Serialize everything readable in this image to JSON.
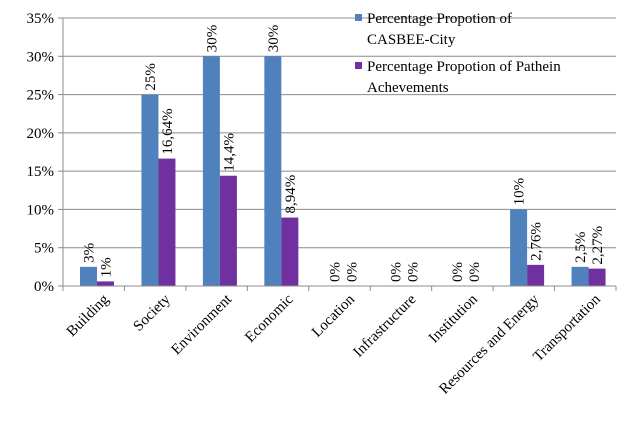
{
  "chart_data": {
    "type": "bar",
    "categories": [
      "Building",
      "Society",
      "Environment",
      "Economic",
      "Location",
      "Infrastructure",
      "Institution",
      "Resources and Energy",
      "Transportation"
    ],
    "series": [
      {
        "name": "Percentage Propotion of CASBEE-City",
        "color": "#4F81BD",
        "values": [
          2.5,
          25,
          30,
          30,
          0,
          0,
          0,
          10,
          2.5
        ],
        "labels": [
          "3%",
          "25%",
          "30%",
          "30%",
          "0%",
          "0%",
          "0%",
          "10%",
          "2,5%"
        ]
      },
      {
        "name": "Percentage Propotion of Pathein Achevements",
        "color": "#7030A0",
        "values": [
          0.6,
          16.64,
          14.4,
          8.94,
          0,
          0,
          0,
          2.76,
          2.27
        ],
        "labels": [
          "1%",
          "16,64%",
          "14,4%",
          "8,94%",
          "0%",
          "0%",
          "0%",
          "2,76%",
          "2,27%"
        ]
      }
    ],
    "legend": {
      "position": "top-right",
      "lines": [
        [
          "Percentage Propotion of",
          "CASBEE-City"
        ],
        [
          "Percentage Propotion of Pathein",
          "Achevements"
        ]
      ]
    },
    "yticks": [
      "0%",
      "5%",
      "10%",
      "15%",
      "20%",
      "25%",
      "30%",
      "35%"
    ],
    "ylim": [
      0,
      35
    ],
    "grid": true,
    "title": "",
    "xlabel": "",
    "ylabel": ""
  }
}
